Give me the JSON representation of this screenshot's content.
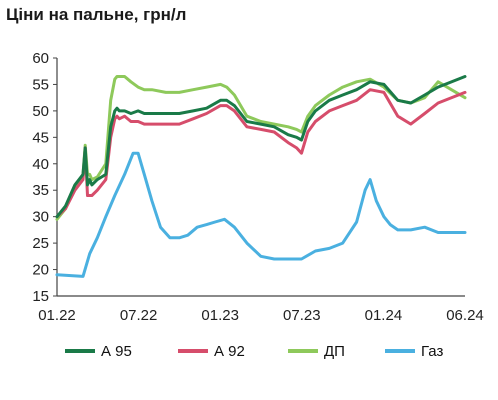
{
  "chart_data": {
    "type": "line",
    "title": "Ціни на пальне, грн/л",
    "xlabel": "",
    "ylabel": "",
    "ylim": [
      15,
      60
    ],
    "yticks": [
      15,
      20,
      25,
      30,
      35,
      40,
      45,
      50,
      55,
      60
    ],
    "xlim": [
      "2022-01-01",
      "2024-06-30"
    ],
    "xtick_labels": [
      "01.22",
      "07.22",
      "01.23",
      "07.23",
      "01.24",
      "06.24"
    ],
    "grid": false,
    "legend_position": "bottom",
    "series": [
      {
        "name": "А 95",
        "color": "#1a7a48",
        "x": [
          "2022-01-01",
          "2022-01-20",
          "2022-02-10",
          "2022-02-28",
          "2022-03-05",
          "2022-03-10",
          "2022-03-15",
          "2022-03-20",
          "2022-04-01",
          "2022-04-20",
          "2022-05-01",
          "2022-05-10",
          "2022-05-15",
          "2022-05-20",
          "2022-06-01",
          "2022-06-15",
          "2022-07-01",
          "2022-07-15",
          "2022-08-01",
          "2022-09-01",
          "2022-10-01",
          "2022-11-01",
          "2022-12-01",
          "2023-01-01",
          "2023-01-15",
          "2023-02-01",
          "2023-03-01",
          "2023-04-01",
          "2023-05-01",
          "2023-06-01",
          "2023-06-20",
          "2023-07-01",
          "2023-07-15",
          "2023-08-01",
          "2023-09-01",
          "2023-10-01",
          "2023-11-01",
          "2023-12-01",
          "2024-01-01",
          "2024-02-01",
          "2024-03-01",
          "2024-04-01",
          "2024-05-01",
          "2024-06-30"
        ],
        "values": [
          30,
          32,
          36,
          38,
          43,
          36,
          37,
          36,
          37,
          38,
          47,
          50,
          50.5,
          50,
          50,
          49.5,
          50,
          49.5,
          49.5,
          49.5,
          49.5,
          50,
          50.5,
          52,
          52,
          51,
          48,
          47.5,
          47,
          45.5,
          45,
          44.5,
          48,
          50,
          52,
          53,
          54,
          55.5,
          55,
          52,
          51.5,
          53,
          54.5,
          56.5
        ]
      },
      {
        "name": "А 92",
        "color": "#d64d6b",
        "x": [
          "2022-01-01",
          "2022-01-20",
          "2022-02-10",
          "2022-02-28",
          "2022-03-05",
          "2022-03-10",
          "2022-03-15",
          "2022-03-20",
          "2022-04-01",
          "2022-04-20",
          "2022-05-01",
          "2022-05-10",
          "2022-05-15",
          "2022-05-20",
          "2022-06-01",
          "2022-06-15",
          "2022-07-01",
          "2022-07-15",
          "2022-08-01",
          "2022-09-01",
          "2022-10-01",
          "2022-11-01",
          "2022-12-01",
          "2023-01-01",
          "2023-01-15",
          "2023-02-01",
          "2023-03-01",
          "2023-04-01",
          "2023-05-01",
          "2023-06-01",
          "2023-06-20",
          "2023-07-01",
          "2023-07-15",
          "2023-08-01",
          "2023-09-01",
          "2023-10-01",
          "2023-11-01",
          "2023-12-01",
          "2024-01-01",
          "2024-02-01",
          "2024-03-01",
          "2024-04-01",
          "2024-05-01",
          "2024-06-30"
        ],
        "values": [
          30,
          31.5,
          35,
          37,
          43,
          34,
          34,
          34,
          35,
          37,
          45,
          48.5,
          49,
          48.5,
          49,
          48,
          48,
          47.5,
          47.5,
          47.5,
          47.5,
          48.5,
          49.5,
          51,
          51,
          50,
          47,
          46.5,
          46,
          44,
          43,
          42,
          46,
          48,
          50,
          51,
          52,
          54,
          53.5,
          49,
          47.5,
          49.5,
          51.5,
          53.5
        ]
      },
      {
        "name": "ДП",
        "color": "#8ec95b",
        "x": [
          "2022-01-01",
          "2022-01-20",
          "2022-02-10",
          "2022-02-28",
          "2022-03-05",
          "2022-03-10",
          "2022-03-15",
          "2022-03-20",
          "2022-04-01",
          "2022-04-20",
          "2022-05-01",
          "2022-05-10",
          "2022-05-15",
          "2022-06-01",
          "2022-06-15",
          "2022-07-01",
          "2022-07-15",
          "2022-08-01",
          "2022-09-01",
          "2022-10-01",
          "2022-11-01",
          "2022-12-01",
          "2023-01-01",
          "2023-01-15",
          "2023-02-01",
          "2023-03-01",
          "2023-04-01",
          "2023-05-01",
          "2023-06-01",
          "2023-06-20",
          "2023-07-01",
          "2023-07-15",
          "2023-08-01",
          "2023-09-01",
          "2023-10-01",
          "2023-11-01",
          "2023-12-01",
          "2024-01-01",
          "2024-02-01",
          "2024-03-01",
          "2024-04-01",
          "2024-05-01",
          "2024-06-30"
        ],
        "values": [
          29.5,
          31.5,
          35.5,
          38,
          43.5,
          38,
          38,
          37,
          37.5,
          40,
          52,
          56,
          56.5,
          56.5,
          55.5,
          54.5,
          54,
          54,
          53.5,
          53.5,
          54,
          54.5,
          55,
          54.5,
          53,
          49,
          48,
          47.5,
          47,
          46.5,
          46,
          49,
          51,
          53,
          54.5,
          55.5,
          56,
          54.5,
          52,
          51.5,
          52.5,
          55.5,
          52.5
        ]
      },
      {
        "name": "Газ",
        "color": "#4ab0e0",
        "x": [
          "2022-01-01",
          "2022-02-10",
          "2022-02-28",
          "2022-03-15",
          "2022-04-01",
          "2022-04-20",
          "2022-05-10",
          "2022-06-01",
          "2022-06-20",
          "2022-07-01",
          "2022-07-15",
          "2022-08-01",
          "2022-08-20",
          "2022-09-10",
          "2022-10-01",
          "2022-10-20",
          "2022-11-10",
          "2022-12-01",
          "2022-12-20",
          "2023-01-10",
          "2023-02-01",
          "2023-03-01",
          "2023-04-01",
          "2023-05-01",
          "2023-06-01",
          "2023-07-01",
          "2023-08-01",
          "2023-09-01",
          "2023-10-01",
          "2023-11-01",
          "2023-11-20",
          "2023-12-01",
          "2023-12-15",
          "2024-01-01",
          "2024-01-15",
          "2024-02-01",
          "2024-03-01",
          "2024-04-01",
          "2024-05-01",
          "2024-06-30"
        ],
        "values": [
          19,
          18.8,
          18.7,
          23,
          26,
          30,
          34,
          38,
          42,
          42,
          38,
          33,
          28,
          26,
          26,
          26.5,
          28,
          28.5,
          29,
          29.5,
          28,
          25,
          22.5,
          22,
          22,
          22,
          23.5,
          24,
          25,
          29,
          35,
          37,
          33,
          30,
          28.5,
          27.5,
          27.5,
          28,
          27,
          27
        ]
      }
    ]
  }
}
